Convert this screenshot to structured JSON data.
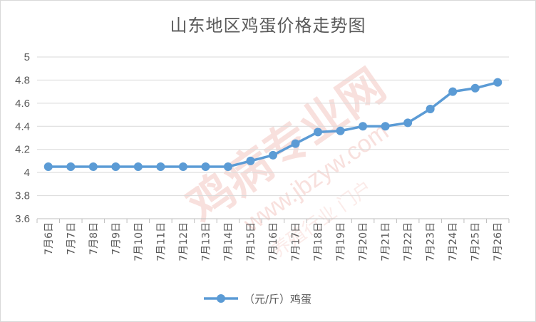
{
  "chart_data": {
    "type": "line",
    "title": "山东地区鸡蛋价格走势图",
    "categories": [
      "7月6日",
      "7月7日",
      "7月8日",
      "7月9日",
      "7月10日",
      "7月11日",
      "7月12日",
      "7月13日",
      "7月14日",
      "7月15日",
      "7月16日",
      "7月17日",
      "7月18日",
      "7月19日",
      "7月20日",
      "7月21日",
      "7月22日",
      "7月23日",
      "7月24日",
      "7月25日",
      "7月26日"
    ],
    "series": [
      {
        "name": "（元/斤）鸡蛋",
        "values": [
          4.05,
          4.05,
          4.05,
          4.05,
          4.05,
          4.05,
          4.05,
          4.05,
          4.05,
          4.1,
          4.15,
          4.25,
          4.35,
          4.36,
          4.4,
          4.4,
          4.43,
          4.55,
          4.7,
          4.73,
          4.78
        ]
      }
    ],
    "xlabel": "",
    "ylabel": "",
    "ylim": [
      3.6,
      5
    ],
    "yticks": [
      "3.6",
      "3.8",
      "4",
      "4.2",
      "4.4",
      "4.6",
      "4.8",
      "5"
    ],
    "grid": "horizontal",
    "legend": "bottom",
    "line_color": "#5b9bd5"
  },
  "watermark": {
    "text_main": "鸡病专业网",
    "text_url": "www.jbzyw.com",
    "text_sub": "养殖行业 门户",
    "color": "#f4c7c3"
  }
}
